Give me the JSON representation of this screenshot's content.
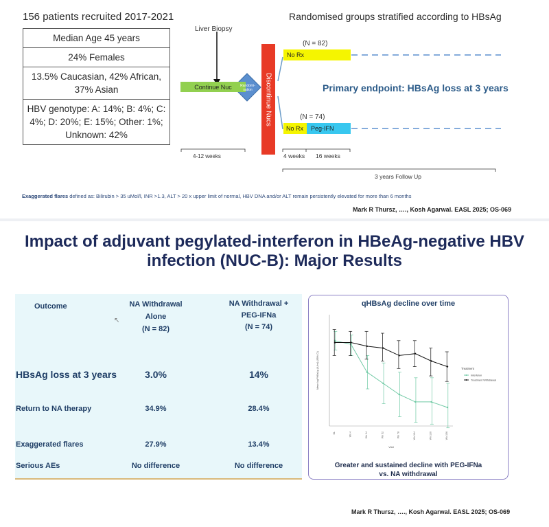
{
  "top": {
    "recruited": "156 patients recruited 2017-2021",
    "demographics": [
      "Median Age 45 years",
      "24% Females",
      "13.5% Caucasian, 42% African, 37% Asian",
      "HBV genotype: A: 14%; B: 4%; C: 4%; D: 20%; E: 15%; Other: 1%; Unknown: 42%"
    ],
    "diagram": {
      "liver_biopsy": "Liver Biopsy",
      "continue_nuc": "Continue Nuc",
      "randomisation": "Randomi-sation",
      "discontinue": "Discontinue Nucs",
      "rand_title": "Randomised groups stratified according to HBsAg",
      "n_top": "(N = 82)",
      "n_bottom": "(N = 74)",
      "no_rx_top": "No Rx",
      "no_rx_bottom": "No Rx",
      "peg_ifn": "Peg-IFN",
      "primary": "Primary endpoint: HBsAg loss at 3 years",
      "weeks_lead": "4-12 weeks",
      "weeks_4": "4 weeks",
      "weeks_16": "16 weeks",
      "follow_up": "3 years Follow Up"
    },
    "footnote_bold": "Exaggerated flares",
    "footnote_rest": " defined as: Bilirubin > 35 uMol/l, INR >1.3, ALT > 20 x upper limit of normal, HBV DNA and/or ALT remain persistently elevated for more than 6 months",
    "citation": "Mark R Thursz, …., Kosh Agarwal. EASL 2025; OS-069",
    "colors": {
      "yellow": "#f5f500",
      "cyan": "#38c7ef",
      "green": "#92d050",
      "diamond": "#5b8fcf",
      "red": "#e83a26"
    }
  },
  "bottom": {
    "title_line1": "Impact of adjuvant pegylated-interferon in HBeAg-negative HBV",
    "title_line2": "infection (NUC-B): Major Results",
    "table": {
      "h_outcome": "Outcome",
      "h_na_1": "NA Withdrawal Alone",
      "h_na_2": "(N = 82)",
      "h_peg_1": "NA Withdrawal +",
      "h_peg_2": "PEG-IFNa",
      "h_peg_3": "(N = 74)",
      "rows": [
        {
          "label": "HBsAg loss at  3 years",
          "na": "3.0%",
          "peg": "14%"
        },
        {
          "label": "Return to NA therapy",
          "na": "34.9%",
          "peg": "28.4%"
        },
        {
          "label": "Exaggerated flares",
          "na": "27.9%",
          "peg": "13.4%"
        },
        {
          "label": "Serious AEs",
          "na": "No difference",
          "peg": "No difference"
        }
      ]
    },
    "chart": {
      "title": "qHBsAg decline over time",
      "caption_1": "Greater and sustained decline with PEG-IFNa",
      "caption_2": "vs. NA withdrawal",
      "ylabel": "Mean log¹⁰HBsAg (IU/ml) (95% CI)",
      "xlabel": "Visit",
      "legend_title": "Treatment",
      "legend": [
        "Interferon",
        "Treatment Withdrawal"
      ]
    },
    "citation": "Mark R Thursz, …., Kosh Agarwal. EASL 2025; OS-069"
  },
  "chart_data": {
    "type": "line",
    "title": "qHBsAg decline over time",
    "xlabel": "Visit",
    "ylabel": "Mean log¹⁰HBsAg (IU/ml) (95% CI)",
    "categories": [
      "BL",
      "Wk 4",
      "Wk 24",
      "Wk 52",
      "Wk 78",
      "Wk 104",
      "Wk 130",
      "Wk 156"
    ],
    "ylim": [
      1,
      4
    ],
    "series": [
      {
        "name": "Interferon",
        "color": "#6fc9a4",
        "values": [
          3.3,
          3.2,
          2.45,
          2.15,
          1.85,
          1.65,
          1.65,
          1.5
        ],
        "lower": [
          3.05,
          2.9,
          2.0,
          1.6,
          1.25,
          1.1,
          1.05,
          0.95
        ],
        "upper": [
          3.55,
          3.45,
          2.9,
          2.7,
          2.45,
          2.3,
          2.3,
          2.15
        ]
      },
      {
        "name": "Treatment Withdrawal",
        "color": "#111111",
        "values": [
          3.25,
          3.25,
          3.15,
          3.1,
          2.9,
          2.95,
          2.75,
          2.6
        ],
        "lower": [
          2.9,
          2.9,
          2.8,
          2.75,
          2.55,
          2.6,
          2.35,
          2.2
        ],
        "upper": [
          3.6,
          3.55,
          3.55,
          3.5,
          3.3,
          3.3,
          3.1,
          3.0
        ]
      }
    ],
    "grid": false,
    "legend": "right"
  }
}
